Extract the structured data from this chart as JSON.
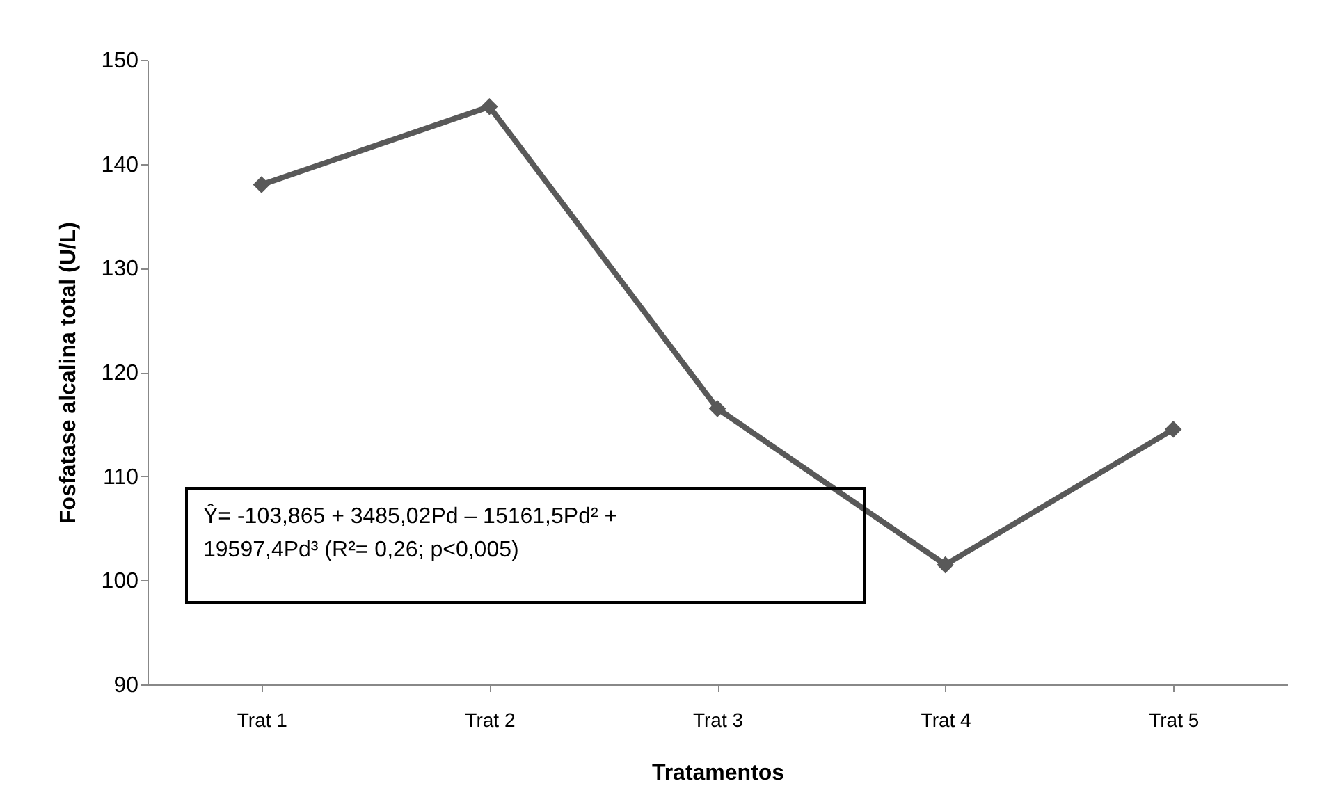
{
  "chart_data": {
    "type": "line",
    "xlabel": "Tratamentos",
    "ylabel": "Fosfatase alcalina total (U/L)",
    "categories": [
      "Trat 1",
      "Trat 2",
      "Trat 3",
      "Trat 4",
      "Trat 5"
    ],
    "series": [
      {
        "color": "#595959",
        "values": [
          138,
          145.5,
          116.5,
          101.5,
          114.5
        ]
      }
    ],
    "ylim": [
      90,
      150
    ],
    "yticks": [
      90,
      100,
      110,
      120,
      130,
      140,
      150
    ],
    "marker": "diamond",
    "line_style": "solid",
    "grid": false,
    "annotations": [
      "Ŷ= -103,865 + 3485,02Pd – 15161,5Pd² +\n19597,4Pd³    (R²= 0,26; p<0,005)"
    ]
  }
}
